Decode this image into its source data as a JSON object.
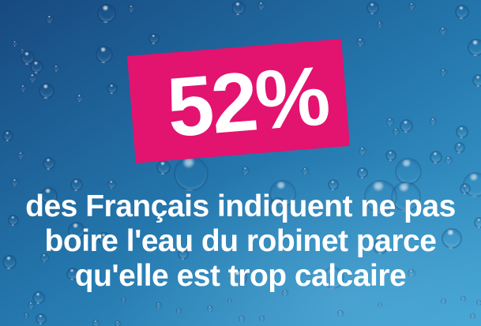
{
  "stat_card": {
    "value": "52%",
    "background_color": "#e31370",
    "text_color": "#ffffff"
  },
  "caption": {
    "lines": [
      "des Français indiquent ne pas",
      "boire l'eau du robinet parce",
      "qu'elle est trop calcaire"
    ],
    "text_color": "#ffffff"
  },
  "background": {
    "description": "blue water droplets photo",
    "gradient_top_left": "#17497f",
    "gradient_mid": "#2478ae",
    "gradient_bottom_right": "#41a3d3"
  }
}
